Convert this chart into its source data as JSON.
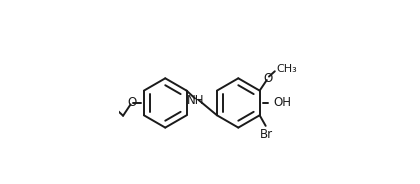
{
  "background": "#ffffff",
  "lc": "#1a1a1a",
  "lw": 1.4,
  "fs": 8.5,
  "figsize": [
    4.2,
    1.84
  ],
  "dpi": 100,
  "r1cx": 0.255,
  "r1cy": 0.44,
  "r2cx": 0.655,
  "r2cy": 0.44,
  "hexr": 0.135,
  "inner_ratio": 0.72,
  "nh_label": "NH",
  "o_label": "O",
  "oh_label": "OH",
  "br_label": "Br",
  "meo_label": "O",
  "ch3_label": "CH₃",
  "et_label": ""
}
